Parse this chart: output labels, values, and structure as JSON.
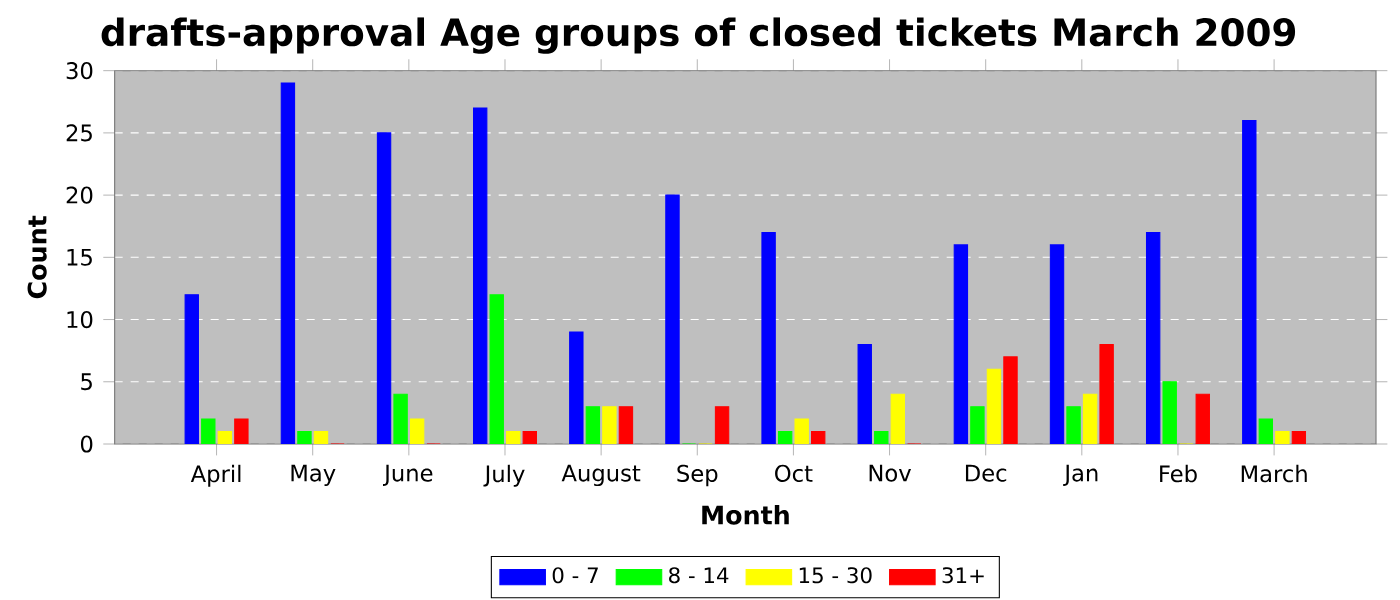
{
  "chart_data": {
    "type": "bar",
    "title": "drafts-approval Age groups of closed tickets March 2009",
    "xlabel": "Month",
    "ylabel": "Count",
    "categories": [
      "April",
      "May",
      "June",
      "July",
      "August",
      "Sep",
      "Oct",
      "Nov",
      "Dec",
      "Jan",
      "Feb",
      "March"
    ],
    "series": [
      {
        "name": "0 - 7",
        "color": "#0000ff",
        "values": [
          12,
          29,
          25,
          27,
          9,
          20,
          17,
          8,
          16,
          16,
          17,
          26
        ]
      },
      {
        "name": "8 - 14",
        "color": "#00ff00",
        "values": [
          2,
          1,
          4,
          12,
          3,
          0,
          1,
          1,
          3,
          3,
          5,
          2
        ]
      },
      {
        "name": "15 - 30",
        "color": "#ffff00",
        "values": [
          1,
          1,
          2,
          1,
          3,
          0,
          2,
          4,
          6,
          4,
          0,
          1
        ]
      },
      {
        "name": "31+",
        "color": "#ff0000",
        "values": [
          2,
          0,
          0,
          1,
          3,
          3,
          1,
          0,
          7,
          8,
          4,
          1
        ]
      }
    ],
    "ylim": [
      0,
      30
    ],
    "yticks": [
      0,
      5,
      10,
      15,
      20,
      25,
      30
    ],
    "grid": "y",
    "legend": "bottom"
  }
}
